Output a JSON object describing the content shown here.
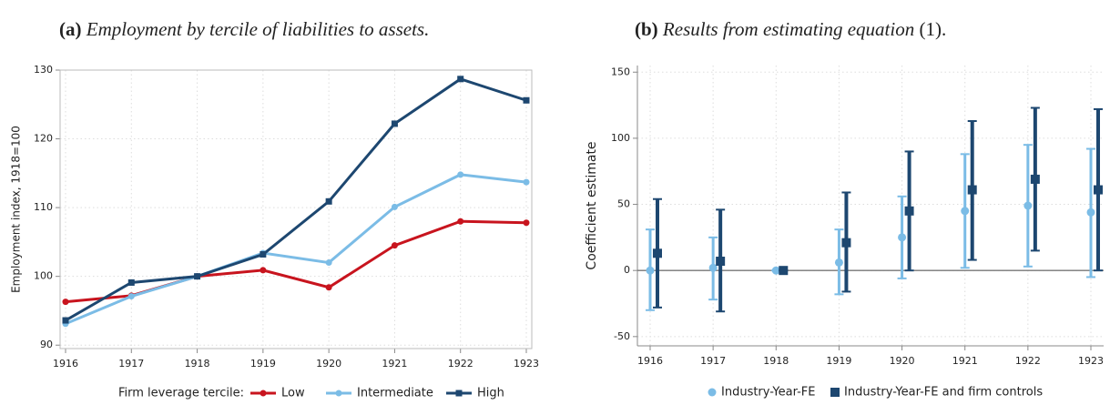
{
  "chart_data": [
    {
      "type": "line",
      "panel": "(a)",
      "title": "Employment by tercile of liabilities to assets.",
      "y_label": "Employment index, 1918=100",
      "categories": [
        "1916",
        "1917",
        "1918",
        "1919",
        "1920",
        "1921",
        "1922",
        "1923"
      ],
      "series": [
        {
          "name": "Low",
          "color": "#c8141e",
          "values": [
            96.3,
            97.2,
            100,
            100.9,
            98.4,
            104.5,
            108.0,
            107.8
          ]
        },
        {
          "name": "Intermediate",
          "color": "#7bbce6",
          "values": [
            93.1,
            97.1,
            100,
            103.4,
            102.0,
            110.1,
            114.8,
            113.7
          ]
        },
        {
          "name": "High",
          "color": "#1d4770",
          "values": [
            93.6,
            99.1,
            100,
            103.2,
            110.9,
            122.2,
            128.7,
            125.6
          ]
        }
      ],
      "legend_title": "Firm leverage tercile:",
      "ylim": [
        89.5,
        130
      ],
      "yticks": [
        90,
        100,
        110,
        120,
        130
      ],
      "grid": true
    },
    {
      "type": "errorbar",
      "panel": "(b)",
      "title": "Results from estimating equation",
      "title_ref": "(1).",
      "y_label": "Coefficient estimate",
      "categories": [
        "1916",
        "1917",
        "1918",
        "1919",
        "1920",
        "1921",
        "1922",
        "1923"
      ],
      "series": [
        {
          "name": "Industry-Year-FE",
          "color": "#7bbce6",
          "marker": "circle",
          "values": [
            0,
            2,
            0,
            6,
            25,
            45,
            49,
            44
          ],
          "lower": [
            -30,
            -22,
            0,
            -18,
            -6,
            2,
            3,
            -5
          ],
          "upper": [
            31,
            25,
            0,
            31,
            56,
            88,
            95,
            92
          ]
        },
        {
          "name": "Industry-Year-FE and firm controls",
          "color": "#1d4770",
          "marker": "square",
          "values": [
            13,
            7,
            0,
            21,
            45,
            61,
            69,
            61
          ],
          "lower": [
            -28,
            -31,
            0,
            -16,
            0,
            8,
            15,
            0
          ],
          "upper": [
            54,
            46,
            0,
            59,
            90,
            113,
            123,
            122
          ]
        }
      ],
      "ylim": [
        -57,
        155
      ],
      "yticks": [
        -50,
        0,
        50,
        100,
        150
      ],
      "grid": true
    }
  ]
}
